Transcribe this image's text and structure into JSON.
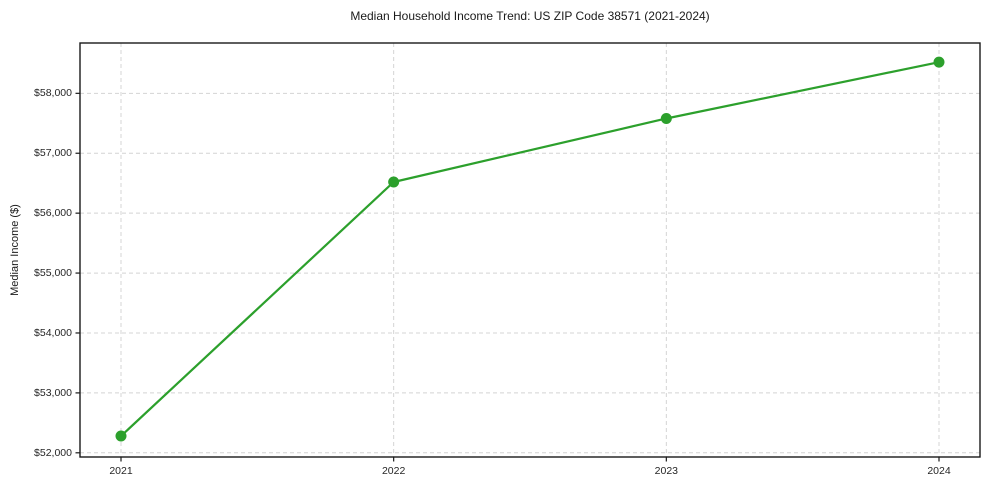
{
  "chart_data": {
    "type": "line",
    "title": "Median Household Income Trend: US ZIP Code 38571 (2021-2024)",
    "xlabel": "",
    "ylabel": "Median Income ($)",
    "x": [
      2021,
      2022,
      2023,
      2024
    ],
    "xtick_labels": [
      "2021",
      "2022",
      "2023",
      "2024"
    ],
    "series": [
      {
        "name": "Median Household Income",
        "values": [
          52280,
          56520,
          57580,
          58520
        ]
      }
    ],
    "yticks": [
      52000,
      53000,
      54000,
      55000,
      56000,
      57000,
      58000
    ],
    "ytick_labels": [
      "$52,000",
      "$53,000",
      "$54,000",
      "$55,000",
      "$56,000",
      "$57,000",
      "$58,000"
    ],
    "ylim": [
      51930,
      58840
    ],
    "grid": true,
    "legend_position": "none",
    "colors": {
      "line": "#2ca02c",
      "marker": "#2ca02c",
      "grid": "#d4d4d4",
      "spine": "#1a1a1a",
      "text": "#262626",
      "background": "#ffffff"
    }
  }
}
